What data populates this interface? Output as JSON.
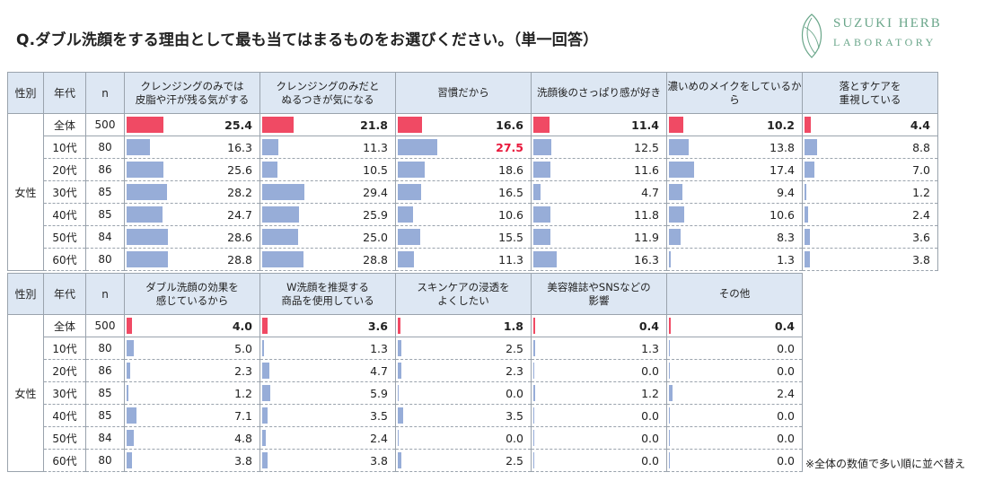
{
  "title": "Q.ダブル洗顔をする理由として最も当てはまるものをお選びください。（単一回答）",
  "logo": {
    "line1": "SUZUKI HERB",
    "line2": "LABORATORY"
  },
  "headers": {
    "gender": "性別",
    "age": "年代",
    "n": "n"
  },
  "gender_label": "女性",
  "rows": [
    {
      "age": "全体",
      "n": "500"
    },
    {
      "age": "10代",
      "n": "80"
    },
    {
      "age": "20代",
      "n": "86"
    },
    {
      "age": "30代",
      "n": "85"
    },
    {
      "age": "40代",
      "n": "85"
    },
    {
      "age": "50代",
      "n": "84"
    },
    {
      "age": "60代",
      "n": "80"
    }
  ],
  "colors": {
    "total_bar": "#f04a64",
    "bar": "#97add8",
    "highlight_text": "#e8193c",
    "header_bg": "#dde7f3"
  },
  "note": "※全体の数値で多い順に並べ替え",
  "chart_data": [
    {
      "type": "table",
      "title": "table-1",
      "columns": [
        {
          "label": [
            "クレンジングのみでは",
            "皮脂や汗が残る気がする"
          ],
          "values": [
            25.4,
            16.3,
            25.6,
            28.2,
            24.7,
            28.6,
            28.8
          ]
        },
        {
          "label": [
            "クレンジングのみだと",
            "ぬるつきが気になる"
          ],
          "values": [
            21.8,
            11.3,
            10.5,
            29.4,
            25.9,
            25.0,
            28.8
          ]
        },
        {
          "label": [
            "習慣だから"
          ],
          "values": [
            16.6,
            27.5,
            18.6,
            16.5,
            10.6,
            15.5,
            11.3
          ],
          "highlight": [
            1
          ]
        },
        {
          "label": [
            "洗顔後のさっぱり感が好き"
          ],
          "values": [
            11.4,
            12.5,
            11.6,
            4.7,
            11.8,
            11.9,
            16.3
          ]
        },
        {
          "label": [
            "濃いめのメイクをしているから"
          ],
          "values": [
            10.2,
            13.8,
            17.4,
            9.4,
            10.6,
            8.3,
            1.3
          ]
        },
        {
          "label": [
            "落とすケアを",
            "重視している"
          ],
          "values": [
            4.4,
            8.8,
            7.0,
            1.2,
            2.4,
            3.6,
            3.8
          ]
        }
      ]
    },
    {
      "type": "table",
      "title": "table-2",
      "columns": [
        {
          "label": [
            "ダブル洗顔の効果を",
            "感じているから"
          ],
          "values": [
            4.0,
            5.0,
            2.3,
            1.2,
            7.1,
            4.8,
            3.8
          ]
        },
        {
          "label": [
            "W洗顔を推奨する",
            "商品を使用している"
          ],
          "values": [
            3.6,
            1.3,
            4.7,
            5.9,
            3.5,
            2.4,
            3.8
          ]
        },
        {
          "label": [
            "スキンケアの浸透を",
            "よくしたい"
          ],
          "values": [
            1.8,
            2.5,
            2.3,
            0.0,
            3.5,
            0.0,
            2.5
          ]
        },
        {
          "label": [
            "美容雑誌やSNSなどの",
            "影響"
          ],
          "values": [
            0.4,
            1.3,
            0.0,
            1.2,
            0.0,
            0.0,
            0.0
          ]
        },
        {
          "label": [
            "その他"
          ],
          "values": [
            0.4,
            0.0,
            0.0,
            2.4,
            0.0,
            0.0,
            0.0
          ]
        }
      ]
    }
  ]
}
